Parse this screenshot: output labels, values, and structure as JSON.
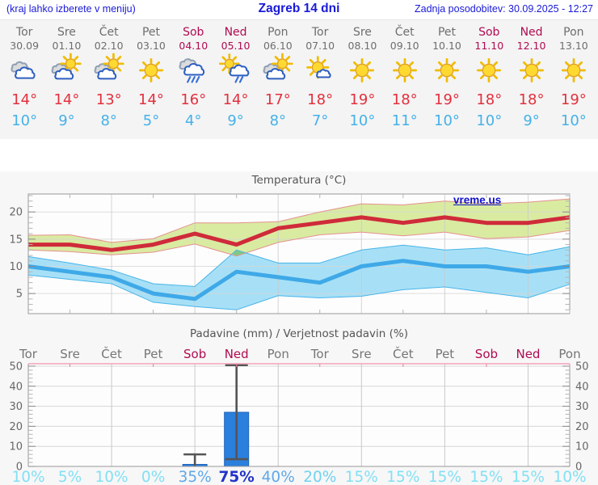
{
  "header": {
    "note": "(kraj lahko izberete v meniju)",
    "title": "Zagreb 14 dni",
    "updated": "Zadnja posodobitev: 30.09.2025 - 12:27"
  },
  "forecast": {
    "days": [
      {
        "name": "Tor",
        "date": "30.09",
        "weekend": false,
        "icon": "cloudy",
        "tmax": 14,
        "tmin": 10
      },
      {
        "name": "Sre",
        "date": "01.10",
        "weekend": false,
        "icon": "partly-sunny",
        "tmax": 14,
        "tmin": 9
      },
      {
        "name": "Čet",
        "date": "02.10",
        "weekend": false,
        "icon": "partly-sunny",
        "tmax": 13,
        "tmin": 8
      },
      {
        "name": "Pet",
        "date": "03.10",
        "weekend": false,
        "icon": "sunny",
        "tmax": 14,
        "tmin": 5
      },
      {
        "name": "Sob",
        "date": "04.10",
        "weekend": true,
        "icon": "rain",
        "tmax": 16,
        "tmin": 4
      },
      {
        "name": "Ned",
        "date": "05.10",
        "weekend": true,
        "icon": "sun-rain",
        "tmax": 14,
        "tmin": 9
      },
      {
        "name": "Pon",
        "date": "06.10",
        "weekend": false,
        "icon": "partly-sunny",
        "tmax": 17,
        "tmin": 8
      },
      {
        "name": "Tor",
        "date": "07.10",
        "weekend": false,
        "icon": "mostly-sunny",
        "tmax": 18,
        "tmin": 7
      },
      {
        "name": "Sre",
        "date": "08.10",
        "weekend": false,
        "icon": "sunny",
        "tmax": 19,
        "tmin": 10
      },
      {
        "name": "Čet",
        "date": "09.10",
        "weekend": false,
        "icon": "sunny",
        "tmax": 18,
        "tmin": 11
      },
      {
        "name": "Pet",
        "date": "10.10",
        "weekend": false,
        "icon": "sunny",
        "tmax": 19,
        "tmin": 10
      },
      {
        "name": "Sob",
        "date": "11.10",
        "weekend": true,
        "icon": "sunny",
        "tmax": 18,
        "tmin": 10
      },
      {
        "name": "Ned",
        "date": "12.10",
        "weekend": true,
        "icon": "sunny",
        "tmax": 18,
        "tmin": 9
      },
      {
        "name": "Pon",
        "date": "13.10",
        "weekend": false,
        "icon": "sunny",
        "tmax": 19,
        "tmin": 10
      }
    ]
  },
  "charts": {
    "watermark": "vreme.us"
  },
  "chart_data": [
    {
      "type": "line",
      "title": "Temperatura (°C)",
      "categories": [
        "Tor 30.09",
        "Sre 01.10",
        "Čet 02.10",
        "Pet 03.10",
        "Sob 04.10",
        "Ned 05.10",
        "Pon 06.10",
        "Tor 07.10",
        "Sre 08.10",
        "Čet 09.10",
        "Pet 10.10",
        "Sob 11.10",
        "Ned 12.10",
        "Pon 13.10"
      ],
      "series": [
        {
          "name": "tmax",
          "values": [
            14,
            14,
            13,
            14,
            16,
            14,
            17,
            18,
            19,
            18,
            19,
            18,
            18,
            19
          ]
        },
        {
          "name": "tmax_hi",
          "values": [
            15.7,
            15.8,
            14.4,
            15.1,
            18,
            18,
            18.2,
            20,
            21.5,
            21.3,
            22,
            21.5,
            21.8,
            22.4
          ]
        },
        {
          "name": "tmax_lo",
          "values": [
            13,
            12.7,
            12.1,
            12.6,
            14.1,
            11.9,
            14.4,
            15.8,
            16.3,
            15.6,
            16.3,
            15.1,
            15.4,
            16.6
          ]
        },
        {
          "name": "tmin",
          "values": [
            10,
            9,
            8,
            5,
            4,
            9,
            8,
            7,
            10,
            11,
            10,
            10,
            9,
            10
          ]
        },
        {
          "name": "tmin_hi",
          "values": [
            11.8,
            10.6,
            9.3,
            6.8,
            6.3,
            13,
            10.6,
            10.6,
            13,
            13.9,
            13,
            13.4,
            12.1,
            13.6
          ]
        },
        {
          "name": "tmin_lo",
          "values": [
            8.4,
            7.6,
            6.8,
            3.4,
            2.6,
            2,
            4.6,
            4.2,
            4.5,
            5.7,
            6.2,
            5.2,
            4.2,
            6.7
          ]
        }
      ],
      "ylim": [
        1.3,
        23.3
      ],
      "yticks": [
        5,
        10,
        15,
        20
      ],
      "grid": true,
      "legend_position": "none"
    },
    {
      "type": "bar",
      "title": "Padavine (mm) / Verjetnost padavin (%)",
      "categories": [
        "Tor 30.09",
        "Sre 01.10",
        "Čet 02.10",
        "Pet 03.10",
        "Sob 04.10",
        "Ned 05.10",
        "Pon 06.10",
        "Tor 07.10",
        "Sre 08.10",
        "Čet 09.10",
        "Pet 10.10",
        "Sob 11.10",
        "Ned 12.10",
        "Pon 13.10"
      ],
      "values": [
        0,
        0,
        0,
        0,
        1,
        27,
        0,
        0,
        0,
        0,
        0,
        0,
        0,
        0
      ],
      "range_lo": [
        null,
        null,
        null,
        null,
        0,
        3.6,
        null,
        null,
        null,
        null,
        null,
        null,
        null,
        null
      ],
      "range_hi": [
        null,
        null,
        null,
        null,
        6,
        50.5,
        null,
        null,
        null,
        null,
        null,
        null,
        null,
        null
      ],
      "probability_pct": [
        10,
        5,
        10,
        0,
        35,
        75,
        40,
        20,
        15,
        15,
        15,
        15,
        15,
        10
      ],
      "ylim": [
        0,
        51.2
      ],
      "yticks": [
        0,
        10,
        20,
        30,
        40,
        50
      ],
      "grid": true
    }
  ],
  "colors": {
    "header_blue": "#1a1ad8",
    "weekday_gray": "#6e6e6e",
    "weekend_red": "#b00b50",
    "tmax_red": "#e3303e",
    "tmin_blue": "#45b1e8",
    "line_max": "#cf2b3a",
    "line_min": "#3fa9e8",
    "band_max_fill": "#d9eba1",
    "band_max_edge": "#e59090",
    "band_min_fill": "#a7e0f6",
    "band_min_edge": "#49b4e9",
    "band_overlap": "#7fcb82",
    "bar_fill": "#2b7fdd",
    "bar_stroke": "#1e62b8",
    "whisker": "#555555",
    "grid_h": "#d6d6d6",
    "grid_v": "#c9c9c9",
    "spine": "#999999",
    "spine_top_pink": "#f2a3b8",
    "tick_pink": "#ec7fa0",
    "tick_minor": "#b5b5b5",
    "tick_major": "#8a8a8a",
    "tick_label": "#666666",
    "day_label_gray": "#757575",
    "prob_high": "#2433c8",
    "prob_med": "#5fa8e8",
    "prob_med_low": "#6fd2ef",
    "prob_low": "#82e0f4",
    "watermark_blue": "#1111cc",
    "title_gray": "#555555"
  }
}
